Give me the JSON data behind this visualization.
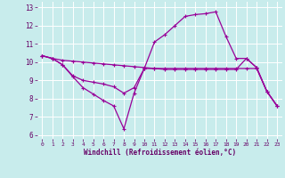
{
  "title": "",
  "xlabel": "Windchill (Refroidissement éolien,°C)",
  "ylabel": "",
  "background_color": "#c8ecec",
  "line_color": "#990099",
  "grid_color": "#ffffff",
  "xlim": [
    -0.5,
    23.5
  ],
  "ylim": [
    5.8,
    13.3
  ],
  "xticks": [
    0,
    1,
    2,
    3,
    4,
    5,
    6,
    7,
    8,
    9,
    10,
    11,
    12,
    13,
    14,
    15,
    16,
    17,
    18,
    19,
    20,
    21,
    22,
    23
  ],
  "yticks": [
    6,
    7,
    8,
    9,
    10,
    11,
    12,
    13
  ],
  "line1_x": [
    0,
    1,
    2,
    3,
    4,
    5,
    6,
    7,
    8,
    9,
    10,
    11,
    12,
    13,
    14,
    15,
    16,
    17,
    18,
    19,
    20,
    21,
    22,
    23
  ],
  "line1_y": [
    10.35,
    10.2,
    9.85,
    9.25,
    9.0,
    8.9,
    8.8,
    8.65,
    8.3,
    8.6,
    9.65,
    9.65,
    9.65,
    9.65,
    9.65,
    9.65,
    9.65,
    9.65,
    9.65,
    9.65,
    9.65,
    9.65,
    8.4,
    7.6
  ],
  "line2_x": [
    0,
    1,
    2,
    3,
    4,
    5,
    6,
    7,
    8,
    9,
    10,
    11,
    12,
    13,
    14,
    15,
    16,
    17,
    18,
    19,
    20,
    21,
    22,
    23
  ],
  "line2_y": [
    10.35,
    10.2,
    9.85,
    9.2,
    8.6,
    8.25,
    7.9,
    7.6,
    6.35,
    8.3,
    9.65,
    11.1,
    11.5,
    12.0,
    12.5,
    12.6,
    12.65,
    12.75,
    11.4,
    10.2,
    10.2,
    9.7,
    8.4,
    7.6
  ],
  "line3_x": [
    0,
    1,
    2,
    3,
    4,
    5,
    6,
    7,
    8,
    9,
    10,
    11,
    12,
    13,
    14,
    15,
    16,
    17,
    18,
    19,
    20,
    21,
    22,
    23
  ],
  "line3_y": [
    10.35,
    10.2,
    10.1,
    10.05,
    10.0,
    9.95,
    9.9,
    9.85,
    9.8,
    9.75,
    9.7,
    9.65,
    9.6,
    9.6,
    9.6,
    9.6,
    9.6,
    9.6,
    9.6,
    9.6,
    10.2,
    9.7,
    8.4,
    7.6
  ],
  "marker": "+"
}
